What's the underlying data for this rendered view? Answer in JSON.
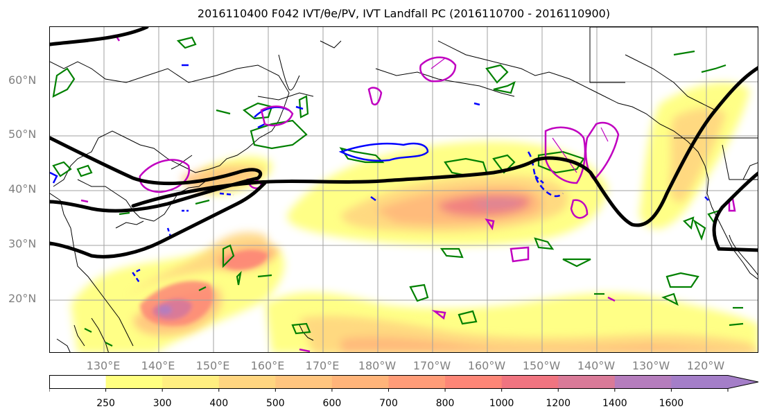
{
  "title": "2016110400 F042 IVT/θe/PV, IVT Landfall PC (2016110700 - 2016110900)",
  "lat_labels": [
    "60°N",
    "50°N",
    "40°N",
    "30°N",
    "20°N"
  ],
  "lon_labels": [
    "130°E",
    "140°E",
    "150°E",
    "160°E",
    "170°E",
    "180°W",
    "170°W",
    "160°W",
    "150°W",
    "140°W",
    "130°W",
    "120°W"
  ],
  "colorbar": {
    "levels": [
      "250",
      "300",
      "400",
      "500",
      "600",
      "700",
      "800",
      "1000",
      "1200",
      "1400",
      "1600"
    ],
    "colors": [
      "#ffffff",
      "#ffff80",
      "#ffee80",
      "#ffd580",
      "#ffc57f",
      "#ffb47a",
      "#ff9c78",
      "#fd8677",
      "#f07480",
      "#d97a98",
      "#b57dbd",
      "#a47ec8"
    ],
    "extend": "max"
  },
  "legend_colors": {
    "jet_streamline": "#000000",
    "theta_e_contour": "#0000ff",
    "pv_contour": "#c000c0",
    "ivt_low_contour": "#008000",
    "coastline": "#000000"
  }
}
